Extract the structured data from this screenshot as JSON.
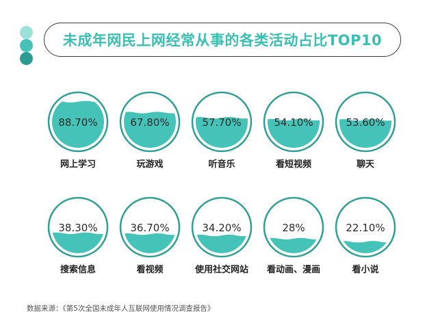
{
  "chart_data": {
    "type": "bar",
    "title": "未成年网民上网经常从事的各类活动占比TOP10",
    "categories": [
      "网上学习",
      "玩游戏",
      "听音乐",
      "看短视频",
      "聊天",
      "搜索信息",
      "看视频",
      "使用社交网站",
      "看动画、漫画",
      "看小说"
    ],
    "values": [
      88.7,
      67.8,
      57.7,
      54.1,
      53.6,
      38.3,
      36.7,
      34.2,
      28,
      22.1
    ],
    "value_labels": [
      "88.70%",
      "67.80%",
      "57.70%",
      "54.10%",
      "53.60%",
      "38.30%",
      "36.70%",
      "34.20%",
      "28%",
      "22.10%"
    ],
    "ylim": [
      0,
      100
    ]
  },
  "source": "数据来源：《第5次全国未成年人互联网使用情况调查报告》",
  "colors": {
    "accent": "#3bbfb2",
    "water": "#45c3b8",
    "ring_outer": "#2f9e94",
    "dot1": "#9be0d9",
    "dot2": "#45c3b8",
    "dot3": "#2a9c91"
  }
}
